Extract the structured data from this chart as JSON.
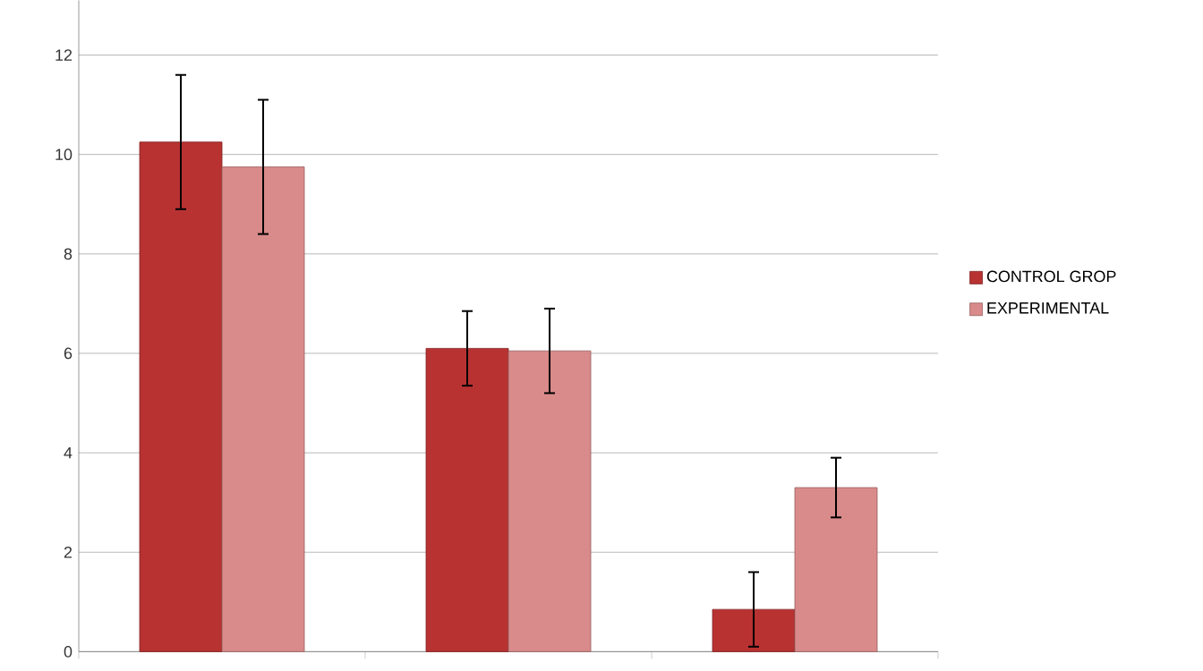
{
  "chart_data": {
    "type": "bar",
    "categories": [
      null,
      null,
      null
    ],
    "series": [
      {
        "name": "CONTROL GROP",
        "color": "#b83232",
        "values": [
          10.25,
          6.1,
          0.85
        ],
        "errors": [
          1.35,
          0.75,
          0.75
        ]
      },
      {
        "name": "EXPERIMENTAL",
        "color": "#d98a8a",
        "values": [
          9.75,
          6.05,
          3.3
        ],
        "errors": [
          1.35,
          0.85,
          0.6
        ]
      }
    ],
    "ylim": [
      0,
      13.1
    ],
    "yticks": [
      0,
      2,
      4,
      6,
      8,
      10,
      12
    ],
    "grid": "y",
    "legend": "right"
  }
}
